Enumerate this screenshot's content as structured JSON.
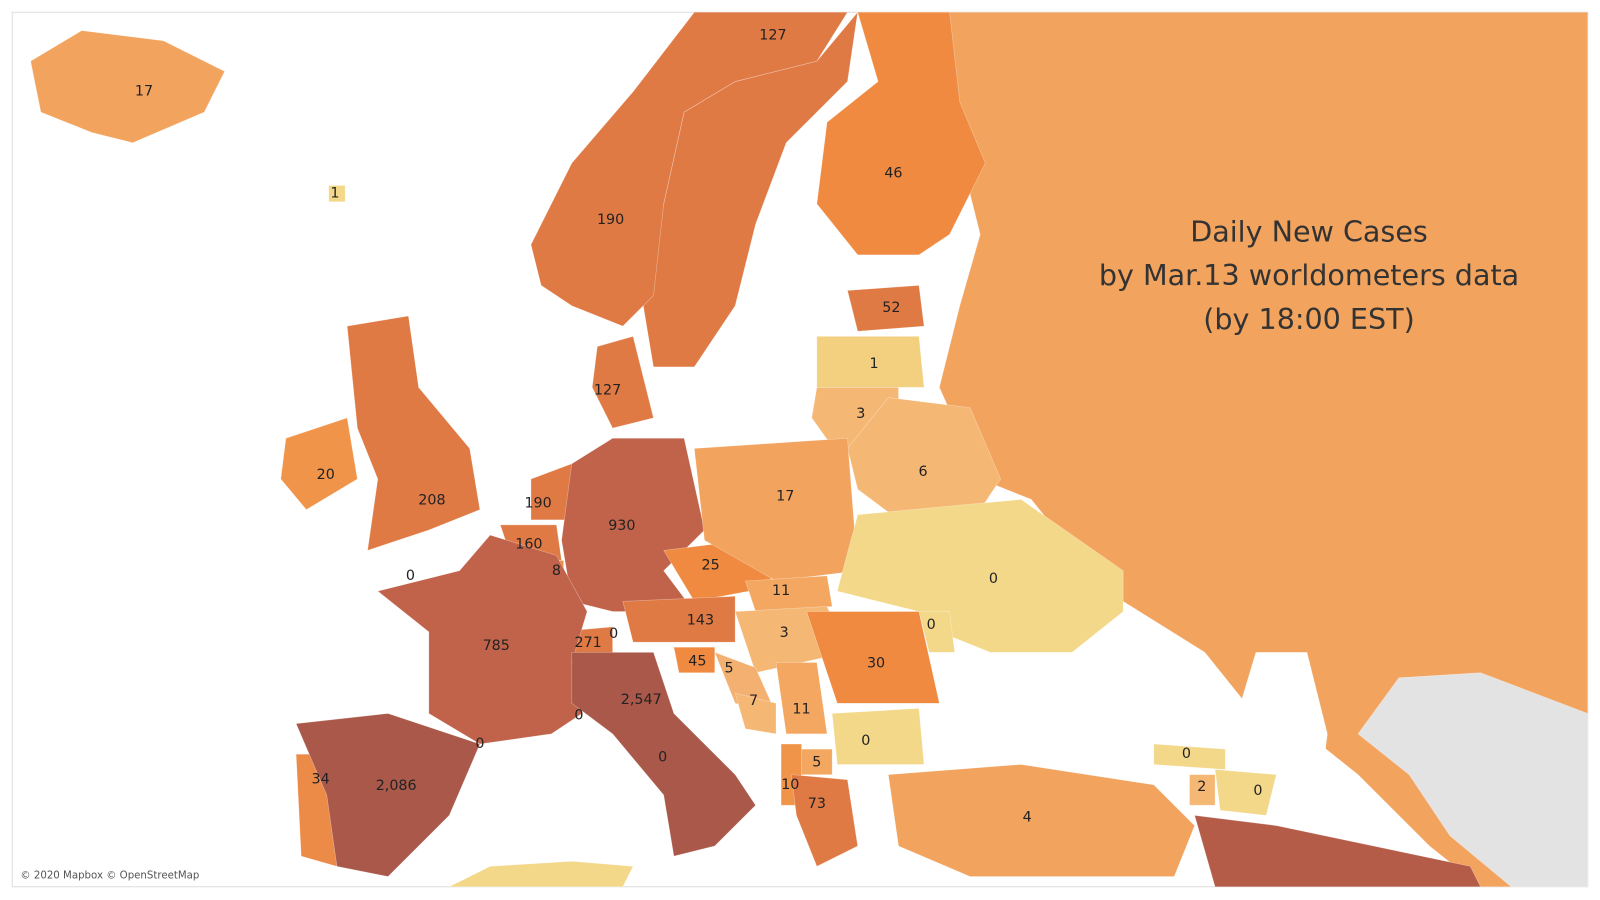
{
  "title": {
    "lines": [
      "Daily New Cases",
      "by Mar.13 worldometers data",
      "(by 18:00 EST)"
    ]
  },
  "map": {
    "labels": [
      "17",
      "1",
      "127",
      "190",
      "46",
      "52",
      "1",
      "3",
      "6",
      "127",
      "20",
      "208",
      "190",
      "930",
      "160",
      "8",
      "0",
      "25",
      "17",
      "11",
      "0",
      "0",
      "143",
      "3",
      "271",
      "0",
      "785",
      "30",
      "45",
      "5",
      "7",
      "11",
      "2,547",
      "0",
      "0",
      "0",
      "0",
      "5",
      "0",
      "34",
      "2,086",
      "10",
      "2",
      "0",
      "73",
      "4"
    ]
  },
  "attribution": "© 2020 Mapbox © OpenStreetMap"
}
